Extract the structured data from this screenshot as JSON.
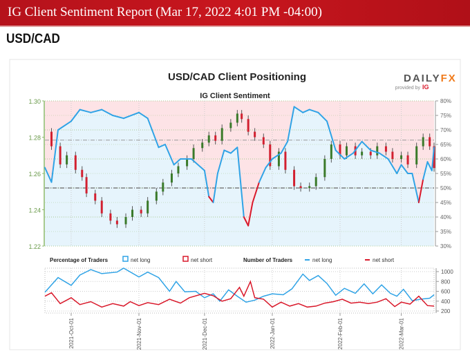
{
  "header": {
    "title": "IG Client Sentiment Report (Mar 17, 2022 4:01 PM -04:00)",
    "pair": "USD/CAD"
  },
  "logo": {
    "brand": "DAILYFX",
    "provided_by": "provided by",
    "ig": "IG"
  },
  "colors": {
    "net_long": "#2fa3e6",
    "net_short": "#d9182a",
    "bull": "#3a7a2a",
    "bear": "#d22030",
    "pink_bg": "#fde3e6",
    "blue_bg": "#e6f4fc"
  },
  "chart_data": [
    {
      "type": "candlestick+line",
      "title": "USD/CAD Client Positioning",
      "subtitle": "IG Client Sentiment",
      "x_range": [
        "2021-09-19",
        "2022-03-16"
      ],
      "y_left": {
        "range": [
          1.22,
          1.3
        ],
        "ticks": [
          "1.30",
          "1.28",
          "1.26",
          "1.24",
          "1.22"
        ]
      },
      "y_right": {
        "range": [
          30,
          80
        ],
        "ticks": [
          "80%",
          "75%",
          "70%",
          "65%",
          "60%",
          "55%",
          "50%",
          "45%",
          "40%",
          "35%",
          "30%"
        ]
      },
      "reference_line": 50,
      "price_close": [
        [
          "2021-09-19",
          1.283
        ],
        [
          "2021-09-22",
          1.275
        ],
        [
          "2021-09-26",
          1.265
        ],
        [
          "2021-09-29",
          1.27
        ],
        [
          "2021-10-03",
          1.262
        ],
        [
          "2021-10-06",
          1.258
        ],
        [
          "2021-10-08",
          1.249
        ],
        [
          "2021-10-12",
          1.245
        ],
        [
          "2021-10-15",
          1.238
        ],
        [
          "2021-10-19",
          1.234
        ],
        [
          "2021-10-22",
          1.232
        ],
        [
          "2021-10-26",
          1.236
        ],
        [
          "2021-10-29",
          1.24
        ],
        [
          "2021-11-02",
          1.238
        ],
        [
          "2021-11-05",
          1.245
        ],
        [
          "2021-11-09",
          1.25
        ],
        [
          "2021-11-12",
          1.255
        ],
        [
          "2021-11-16",
          1.26
        ],
        [
          "2021-11-19",
          1.264
        ],
        [
          "2021-11-23",
          1.268
        ],
        [
          "2021-11-26",
          1.274
        ],
        [
          "2021-11-30",
          1.277
        ],
        [
          "2021-12-03",
          1.281
        ],
        [
          "2021-12-06",
          1.278
        ],
        [
          "2021-12-09",
          1.285
        ],
        [
          "2021-12-13",
          1.288
        ],
        [
          "2021-12-16",
          1.293
        ],
        [
          "2021-12-18",
          1.29
        ],
        [
          "2021-12-21",
          1.283
        ],
        [
          "2021-12-24",
          1.28
        ],
        [
          "2021-12-28",
          1.276
        ],
        [
          "2021-12-31",
          1.264
        ],
        [
          "2022-01-04",
          1.272
        ],
        [
          "2022-01-07",
          1.262
        ],
        [
          "2022-01-11",
          1.253
        ],
        [
          "2022-01-14",
          1.252
        ],
        [
          "2022-01-18",
          1.253
        ],
        [
          "2022-01-21",
          1.258
        ],
        [
          "2022-01-25",
          1.268
        ],
        [
          "2022-01-28",
          1.276
        ],
        [
          "2022-02-01",
          1.27
        ],
        [
          "2022-02-04",
          1.275
        ],
        [
          "2022-02-08",
          1.27
        ],
        [
          "2022-02-11",
          1.272
        ],
        [
          "2022-02-15",
          1.27
        ],
        [
          "2022-02-18",
          1.275
        ],
        [
          "2022-02-22",
          1.272
        ],
        [
          "2022-02-25",
          1.268
        ],
        [
          "2022-03-01",
          1.27
        ],
        [
          "2022-03-04",
          1.265
        ],
        [
          "2022-03-08",
          1.275
        ],
        [
          "2022-03-11",
          1.28
        ],
        [
          "2022-03-14",
          1.275
        ],
        [
          "2022-03-16",
          1.263
        ]
      ],
      "net_long_pct": [
        [
          "2021-09-19",
          57
        ],
        [
          "2021-09-22",
          52
        ],
        [
          "2021-09-25",
          70
        ],
        [
          "2021-10-01",
          73
        ],
        [
          "2021-10-05",
          77
        ],
        [
          "2021-10-10",
          76
        ],
        [
          "2021-10-15",
          77
        ],
        [
          "2021-10-20",
          75
        ],
        [
          "2021-10-25",
          74
        ],
        [
          "2021-11-01",
          76
        ],
        [
          "2021-11-05",
          74
        ],
        [
          "2021-11-10",
          64
        ],
        [
          "2021-11-13",
          65
        ],
        [
          "2021-11-17",
          58
        ],
        [
          "2021-11-20",
          60
        ],
        [
          "2021-11-25",
          60
        ],
        [
          "2021-12-01",
          56
        ],
        [
          "2021-12-03",
          47
        ],
        [
          "2021-12-05",
          45
        ],
        [
          "2021-12-07",
          55
        ],
        [
          "2021-12-10",
          63
        ],
        [
          "2021-12-13",
          62
        ],
        [
          "2021-12-16",
          64
        ],
        [
          "2021-12-19",
          40
        ],
        [
          "2021-12-21",
          37
        ],
        [
          "2021-12-23",
          45
        ],
        [
          "2021-12-26",
          52
        ],
        [
          "2021-12-29",
          57
        ],
        [
          "2022-01-01",
          60
        ],
        [
          "2022-01-05",
          62
        ],
        [
          "2022-01-08",
          66
        ],
        [
          "2022-01-11",
          78
        ],
        [
          "2022-01-15",
          76
        ],
        [
          "2022-01-18",
          77
        ],
        [
          "2022-01-22",
          76
        ],
        [
          "2022-01-26",
          73
        ],
        [
          "2022-01-30",
          63
        ],
        [
          "2022-02-03",
          60
        ],
        [
          "2022-02-07",
          62
        ],
        [
          "2022-02-11",
          66
        ],
        [
          "2022-02-15",
          63
        ],
        [
          "2022-02-19",
          62
        ],
        [
          "2022-02-23",
          60
        ],
        [
          "2022-02-27",
          55
        ],
        [
          "2022-03-01",
          58
        ],
        [
          "2022-03-04",
          55
        ],
        [
          "2022-03-06",
          55
        ],
        [
          "2022-03-09",
          45
        ],
        [
          "2022-03-11",
          53
        ],
        [
          "2022-03-13",
          59
        ],
        [
          "2022-03-15",
          56
        ],
        [
          "2022-03-16",
          64
        ]
      ]
    },
    {
      "type": "line",
      "legend": {
        "pct_label": "Percentage of Traders",
        "num_label": "Number of Traders",
        "net_long": "net long",
        "net_short": "net short"
      },
      "y_range": [
        200,
        1000
      ],
      "y_ticks": [
        "1000",
        "800",
        "600",
        "400",
        "200"
      ],
      "x_ticks": [
        [
          "2021-10-01",
          "2021-Oct-01"
        ],
        [
          "2021-11-01",
          "2021-Nov-01"
        ],
        [
          "2021-12-01",
          "2021-Dec-01"
        ],
        [
          "2022-01-01",
          "2022-Jan-01"
        ],
        [
          "2022-02-01",
          "2022-Feb-01"
        ],
        [
          "2022-03-01",
          "2022-Mar-01"
        ]
      ],
      "series": [
        {
          "name": "net long",
          "points": [
            [
              "2021-09-19",
              580
            ],
            [
              "2021-09-25",
              880
            ],
            [
              "2021-10-01",
              720
            ],
            [
              "2021-10-05",
              930
            ],
            [
              "2021-10-10",
              1040
            ],
            [
              "2021-10-15",
              960
            ],
            [
              "2021-10-22",
              990
            ],
            [
              "2021-10-25",
              1070
            ],
            [
              "2021-11-01",
              890
            ],
            [
              "2021-11-05",
              990
            ],
            [
              "2021-11-10",
              880
            ],
            [
              "2021-11-15",
              600
            ],
            [
              "2021-11-18",
              800
            ],
            [
              "2021-11-22",
              590
            ],
            [
              "2021-11-27",
              600
            ],
            [
              "2021-12-01",
              470
            ],
            [
              "2021-12-05",
              550
            ],
            [
              "2021-12-08",
              400
            ],
            [
              "2021-12-12",
              630
            ],
            [
              "2021-12-16",
              500
            ],
            [
              "2021-12-20",
              380
            ],
            [
              "2021-12-24",
              420
            ],
            [
              "2021-12-28",
              500
            ],
            [
              "2022-01-01",
              550
            ],
            [
              "2022-01-06",
              530
            ],
            [
              "2022-01-10",
              650
            ],
            [
              "2022-01-15",
              950
            ],
            [
              "2022-01-18",
              820
            ],
            [
              "2022-01-22",
              920
            ],
            [
              "2022-01-26",
              760
            ],
            [
              "2022-01-30",
              520
            ],
            [
              "2022-02-03",
              660
            ],
            [
              "2022-02-08",
              560
            ],
            [
              "2022-02-12",
              750
            ],
            [
              "2022-02-16",
              550
            ],
            [
              "2022-02-20",
              730
            ],
            [
              "2022-02-24",
              560
            ],
            [
              "2022-02-27",
              500
            ],
            [
              "2022-03-02",
              640
            ],
            [
              "2022-03-06",
              410
            ],
            [
              "2022-03-10",
              440
            ],
            [
              "2022-03-14",
              460
            ],
            [
              "2022-03-16",
              530
            ]
          ]
        },
        {
          "name": "net short",
          "points": [
            [
              "2021-09-19",
              500
            ],
            [
              "2021-09-22",
              570
            ],
            [
              "2021-09-26",
              350
            ],
            [
              "2021-10-01",
              470
            ],
            [
              "2021-10-05",
              330
            ],
            [
              "2021-10-10",
              390
            ],
            [
              "2021-10-15",
              280
            ],
            [
              "2021-10-20",
              350
            ],
            [
              "2021-10-25",
              300
            ],
            [
              "2021-10-28",
              390
            ],
            [
              "2021-11-01",
              310
            ],
            [
              "2021-11-05",
              370
            ],
            [
              "2021-11-10",
              330
            ],
            [
              "2021-11-15",
              440
            ],
            [
              "2021-11-20",
              360
            ],
            [
              "2021-11-24",
              470
            ],
            [
              "2021-12-01",
              560
            ],
            [
              "2021-12-05",
              510
            ],
            [
              "2021-12-09",
              400
            ],
            [
              "2021-12-13",
              450
            ],
            [
              "2021-12-17",
              680
            ],
            [
              "2021-12-19",
              500
            ],
            [
              "2021-12-22",
              800
            ],
            [
              "2021-12-24",
              470
            ],
            [
              "2021-12-28",
              440
            ],
            [
              "2022-01-01",
              280
            ],
            [
              "2022-01-05",
              380
            ],
            [
              "2022-01-09",
              300
            ],
            [
              "2022-01-13",
              350
            ],
            [
              "2022-01-17",
              280
            ],
            [
              "2022-01-21",
              300
            ],
            [
              "2022-01-25",
              360
            ],
            [
              "2022-01-29",
              390
            ],
            [
              "2022-02-02",
              440
            ],
            [
              "2022-02-06",
              360
            ],
            [
              "2022-02-10",
              380
            ],
            [
              "2022-02-14",
              350
            ],
            [
              "2022-02-18",
              380
            ],
            [
              "2022-02-22",
              450
            ],
            [
              "2022-02-26",
              290
            ],
            [
              "2022-03-01",
              380
            ],
            [
              "2022-03-05",
              340
            ],
            [
              "2022-03-09",
              500
            ],
            [
              "2022-03-13",
              310
            ],
            [
              "2022-03-16",
              300
            ]
          ]
        }
      ]
    }
  ]
}
